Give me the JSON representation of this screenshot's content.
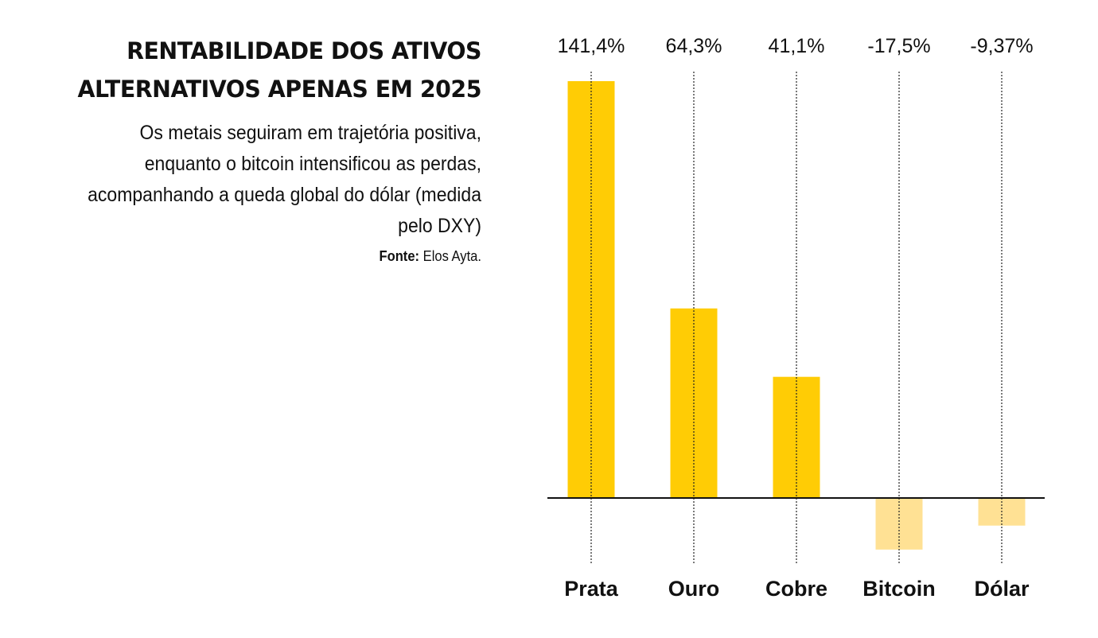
{
  "header": {
    "title_line1": "RENTABILIDADE DOS ATIVOS",
    "title_line2": "ALTERNATIVOS APENAS EM 2025",
    "subtitle": "Os metais seguiram em trajetória positiva, enquanto o bitcoin intensificou as perdas, acompanhando a queda global do dólar (medida pelo DXY)",
    "source_label": "Fonte:",
    "source_value": "Elos Ayta."
  },
  "colors": {
    "positive": "#FFCC05",
    "negative": "#FFE194",
    "axis": "#111111"
  },
  "chart_data": {
    "type": "bar",
    "title": "RENTABILIDADE DOS ATIVOS ALTERNATIVOS APENAS EM 2025",
    "xlabel": "",
    "ylabel": "",
    "categories": [
      "Prata",
      "Ouro",
      "Cobre",
      "Bitcoin",
      "Dólar"
    ],
    "values": [
      141.4,
      64.3,
      41.1,
      -17.5,
      -9.37
    ],
    "value_labels": [
      "141,4%",
      "64,3%",
      "41,1%",
      "-17,5%",
      "-9,37%"
    ],
    "unit": "%",
    "ylim": [
      -17.5,
      141.4
    ],
    "grid": false
  }
}
